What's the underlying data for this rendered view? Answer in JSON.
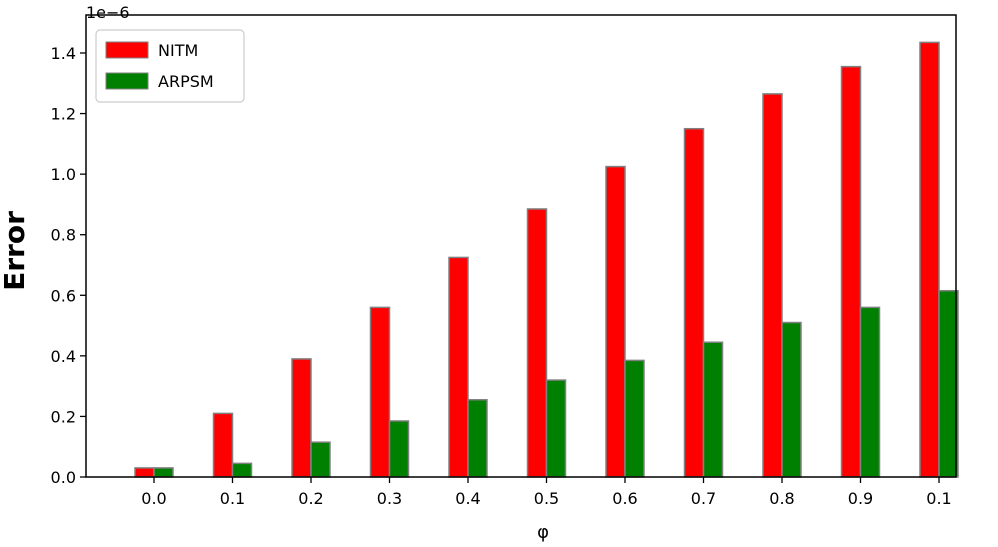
{
  "chart_data": {
    "type": "bar",
    "title": "",
    "xlabel": "φ",
    "ylabel": "Error",
    "y_offset_label": "1e−6",
    "categories": [
      "0.0",
      "0.1",
      "0.2",
      "0.3",
      "0.4",
      "0.5",
      "0.6",
      "0.7",
      "0.8",
      "0.9",
      "0.1"
    ],
    "series": [
      {
        "name": "NITM",
        "color": "#ff0000",
        "values": [
          0.03,
          0.21,
          0.39,
          0.56,
          0.725,
          0.885,
          1.025,
          1.15,
          1.265,
          1.355,
          1.435
        ]
      },
      {
        "name": "ARPSM",
        "color": "#008000",
        "values": [
          0.03,
          0.045,
          0.115,
          0.185,
          0.255,
          0.32,
          0.385,
          0.445,
          0.51,
          0.56,
          0.615
        ]
      }
    ],
    "ylim": [
      0.0,
      1.5
    ],
    "yticks": [
      "0.0",
      "0.2",
      "0.4",
      "0.6",
      "0.8",
      "1.0",
      "1.2",
      "1.4"
    ],
    "ytick_values": [
      0.0,
      0.2,
      0.4,
      0.6,
      0.8,
      1.0,
      1.2,
      1.4
    ],
    "grid": false,
    "legend_position": "top-left",
    "bar_edge_color": "#808080"
  }
}
